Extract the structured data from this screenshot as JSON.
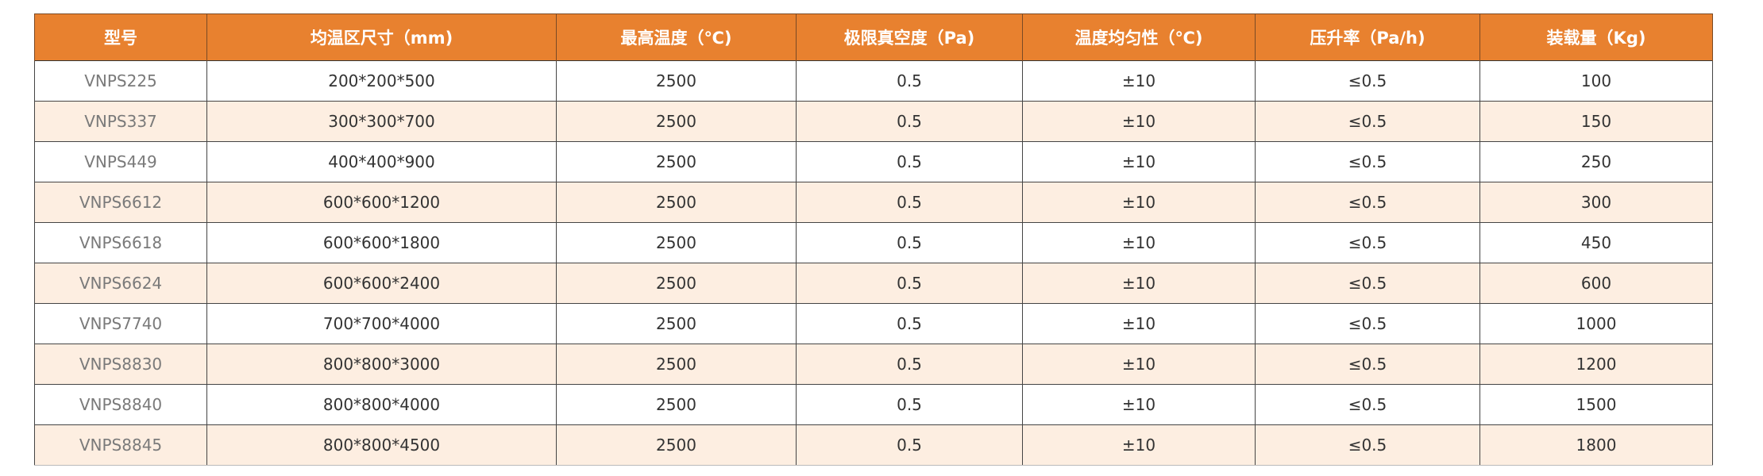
{
  "table": {
    "headers": [
      "型号",
      "均温区尺寸（mm)",
      "最高温度（℃)",
      "极限真空度（Pa)",
      "温度均匀性（℃)",
      "压升率（Pa/h)",
      "装载量（Kg)"
    ],
    "rows": [
      [
        "VNPS225",
        "200*200*500",
        "2500",
        "0.5",
        "±10",
        "≤0.5",
        "100"
      ],
      [
        "VNPS337",
        "300*300*700",
        "2500",
        "0.5",
        "±10",
        "≤0.5",
        "150"
      ],
      [
        "VNPS449",
        "400*400*900",
        "2500",
        "0.5",
        "±10",
        "≤0.5",
        "250"
      ],
      [
        "VNPS6612",
        "600*600*1200",
        "2500",
        "0.5",
        "±10",
        "≤0.5",
        "300"
      ],
      [
        "VNPS6618",
        "600*600*1800",
        "2500",
        "0.5",
        "±10",
        "≤0.5",
        "450"
      ],
      [
        "VNPS6624",
        "600*600*2400",
        "2500",
        "0.5",
        "±10",
        "≤0.5",
        "600"
      ],
      [
        "VNPS7740",
        "700*700*4000",
        "2500",
        "0.5",
        "±10",
        "≤0.5",
        "1000"
      ],
      [
        "VNPS8830",
        "800*800*3000",
        "2500",
        "0.5",
        "±10",
        "≤0.5",
        "1200"
      ],
      [
        "VNPS8840",
        "800*800*4000",
        "2500",
        "0.5",
        "±10",
        "≤0.5",
        "1500"
      ],
      [
        "VNPS8845",
        "800*800*4500",
        "2500",
        "0.5",
        "±10",
        "≤0.5",
        "1800"
      ]
    ]
  },
  "colors": {
    "header_bg": "#E8812F",
    "alt_row_bg": "#FDEEE1"
  }
}
